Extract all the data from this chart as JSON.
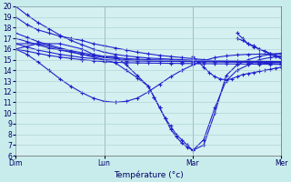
{
  "background_color": "#c8ecec",
  "plot_bg_color": "#d4f0f0",
  "grid_color": "#a8cece",
  "line_color": "#2222cc",
  "marker_color": "#2222cc",
  "xlabel": "Température (°c)",
  "ylim": [
    6,
    20
  ],
  "yticks": [
    6,
    7,
    8,
    9,
    10,
    11,
    12,
    13,
    14,
    15,
    16,
    17,
    18,
    19,
    20
  ],
  "day_labels": [
    "Dim",
    "Lun",
    "Mar",
    "Mer"
  ],
  "day_positions": [
    0.0,
    0.333,
    0.667,
    1.0
  ],
  "series": [
    {
      "x": [
        0.0,
        0.042,
        0.083,
        0.125,
        0.167,
        0.208,
        0.25,
        0.292,
        0.333,
        0.375,
        0.417,
        0.458,
        0.5,
        0.542,
        0.583,
        0.625,
        0.667,
        0.708,
        0.75,
        0.792,
        0.833,
        0.875,
        0.917,
        0.958,
        1.0
      ],
      "y": [
        19.0,
        18.3,
        17.8,
        17.5,
        17.2,
        17.0,
        16.8,
        16.5,
        16.3,
        16.1,
        15.9,
        15.7,
        15.55,
        15.4,
        15.3,
        15.2,
        15.1,
        15.0,
        14.9,
        14.85,
        14.8,
        14.75,
        14.7,
        14.65,
        14.6
      ]
    },
    {
      "x": [
        0.0,
        0.042,
        0.083,
        0.125,
        0.167,
        0.208,
        0.25,
        0.292,
        0.333,
        0.375,
        0.417,
        0.458,
        0.5,
        0.542,
        0.583,
        0.625,
        0.667,
        0.708,
        0.75,
        0.792,
        0.833,
        0.875,
        0.917,
        0.958,
        1.0
      ],
      "y": [
        20.0,
        19.2,
        18.5,
        17.9,
        17.3,
        16.8,
        16.4,
        16.0,
        15.7,
        15.5,
        15.35,
        15.25,
        15.15,
        15.1,
        15.05,
        15.0,
        14.95,
        14.92,
        14.9,
        14.88,
        14.86,
        14.84,
        14.82,
        14.81,
        14.8
      ]
    },
    {
      "x": [
        0.0,
        0.042,
        0.083,
        0.125,
        0.167,
        0.208,
        0.25,
        0.292,
        0.333,
        0.375,
        0.417,
        0.458,
        0.5,
        0.542,
        0.583,
        0.625,
        0.667,
        0.708,
        0.75,
        0.792,
        0.833,
        0.875,
        0.917,
        0.958,
        1.0
      ],
      "y": [
        17.0,
        16.7,
        16.4,
        16.1,
        15.9,
        15.7,
        15.5,
        15.35,
        15.2,
        15.1,
        15.0,
        14.95,
        14.9,
        14.88,
        14.86,
        14.85,
        14.84,
        14.83,
        14.82,
        14.81,
        14.8,
        14.79,
        14.78,
        14.77,
        14.76
      ]
    },
    {
      "x": [
        0.0,
        0.042,
        0.083,
        0.125,
        0.167,
        0.208,
        0.25,
        0.292,
        0.333,
        0.375,
        0.417,
        0.458,
        0.5,
        0.542,
        0.583,
        0.625,
        0.667,
        0.708,
        0.75,
        0.792,
        0.833,
        0.875,
        0.917,
        0.958,
        1.0
      ],
      "y": [
        17.5,
        17.1,
        16.7,
        16.4,
        16.1,
        15.85,
        15.65,
        15.45,
        15.3,
        15.2,
        15.1,
        15.05,
        15.0,
        14.97,
        14.95,
        14.93,
        14.91,
        14.9,
        14.89,
        14.88,
        14.87,
        14.86,
        14.85,
        14.84,
        14.83
      ]
    },
    {
      "x": [
        0.0,
        0.042,
        0.083,
        0.125,
        0.167,
        0.208,
        0.25,
        0.292,
        0.333,
        0.375,
        0.417,
        0.458,
        0.5,
        0.542,
        0.583,
        0.625,
        0.667,
        0.708,
        0.75,
        0.792,
        0.833,
        0.875,
        0.917,
        0.958,
        1.0
      ],
      "y": [
        16.5,
        16.2,
        15.9,
        15.7,
        15.5,
        15.35,
        15.2,
        15.1,
        15.0,
        14.95,
        14.9,
        14.88,
        14.86,
        14.85,
        14.84,
        14.83,
        14.82,
        14.81,
        14.8,
        14.79,
        14.78,
        14.77,
        14.76,
        14.75,
        14.74
      ]
    },
    {
      "x": [
        0.0,
        0.042,
        0.083,
        0.125,
        0.167,
        0.208,
        0.25,
        0.292,
        0.333,
        0.375,
        0.417,
        0.458,
        0.5,
        0.542,
        0.583,
        0.625,
        0.667,
        0.708,
        0.75,
        0.792,
        0.833,
        0.875,
        0.917,
        0.958,
        1.0
      ],
      "y": [
        16.0,
        15.8,
        15.6,
        15.4,
        15.25,
        15.12,
        15.0,
        14.9,
        14.82,
        14.76,
        14.72,
        14.7,
        14.68,
        14.67,
        14.66,
        14.65,
        14.64,
        14.63,
        14.62,
        14.61,
        14.6,
        14.59,
        14.58,
        14.57,
        14.56
      ]
    },
    {
      "x": [
        0.0,
        0.042,
        0.083,
        0.125,
        0.167,
        0.208,
        0.25,
        0.292,
        0.333,
        0.375,
        0.417,
        0.458,
        0.5,
        0.542,
        0.583,
        0.625,
        0.667,
        0.708,
        0.75,
        0.792,
        0.833,
        0.875,
        0.917,
        0.958,
        1.0
      ],
      "y": [
        16.0,
        15.5,
        14.8,
        14.0,
        13.2,
        12.5,
        11.9,
        11.4,
        11.1,
        11.0,
        11.1,
        11.4,
        12.0,
        12.7,
        13.4,
        14.0,
        14.5,
        14.9,
        15.2,
        15.35,
        15.45,
        15.5,
        15.52,
        15.54,
        15.55
      ]
    },
    {
      "x": [
        0.0,
        0.083,
        0.167,
        0.25,
        0.292,
        0.333,
        0.375,
        0.417,
        0.458,
        0.5,
        0.521,
        0.542,
        0.563,
        0.583,
        0.604,
        0.625,
        0.646,
        0.667,
        0.708,
        0.75,
        0.792,
        0.833,
        0.875,
        0.917,
        0.958,
        1.0
      ],
      "y": [
        16.0,
        16.5,
        16.5,
        16.0,
        15.5,
        15.3,
        15.3,
        14.5,
        13.5,
        12.5,
        11.5,
        10.5,
        9.5,
        8.8,
        8.0,
        7.5,
        7.0,
        6.5,
        7.5,
        10.5,
        13.0,
        14.0,
        14.5,
        15.0,
        15.2,
        15.3
      ]
    },
    {
      "x": [
        0.0,
        0.083,
        0.167,
        0.25,
        0.333,
        0.375,
        0.417,
        0.458,
        0.5,
        0.521,
        0.542,
        0.563,
        0.583,
        0.604,
        0.625,
        0.646,
        0.667,
        0.708,
        0.75,
        0.792,
        0.833,
        0.875,
        0.917,
        0.958,
        1.0
      ],
      "y": [
        16.5,
        16.5,
        16.0,
        15.5,
        15.0,
        14.7,
        14.0,
        13.3,
        12.5,
        11.5,
        10.5,
        9.5,
        8.5,
        7.8,
        7.2,
        6.8,
        6.5,
        7.0,
        10.0,
        13.5,
        14.5,
        15.0,
        15.3,
        15.5,
        15.6
      ]
    },
    {
      "x": [
        0.667,
        0.688,
        0.708,
        0.729,
        0.75,
        0.771,
        0.792,
        0.813,
        0.833,
        0.854,
        0.875,
        0.896,
        0.917,
        0.938,
        0.958,
        0.979,
        1.0
      ],
      "y": [
        15.3,
        14.8,
        14.3,
        13.8,
        13.4,
        13.2,
        13.1,
        13.2,
        13.4,
        13.6,
        13.7,
        13.8,
        13.9,
        14.0,
        14.1,
        14.2,
        14.3
      ]
    },
    {
      "x": [
        0.833,
        0.854,
        0.875,
        0.896,
        0.917,
        0.938,
        0.958,
        0.979,
        1.0
      ],
      "y": [
        17.5,
        17.0,
        16.5,
        16.3,
        16.0,
        15.8,
        15.6,
        15.4,
        15.3
      ]
    },
    {
      "x": [
        0.833,
        0.854,
        0.875,
        0.896,
        0.917,
        0.938,
        0.958,
        0.979,
        1.0
      ],
      "y": [
        17.0,
        16.8,
        16.5,
        16.2,
        16.0,
        15.8,
        15.5,
        15.3,
        15.1
      ]
    }
  ]
}
